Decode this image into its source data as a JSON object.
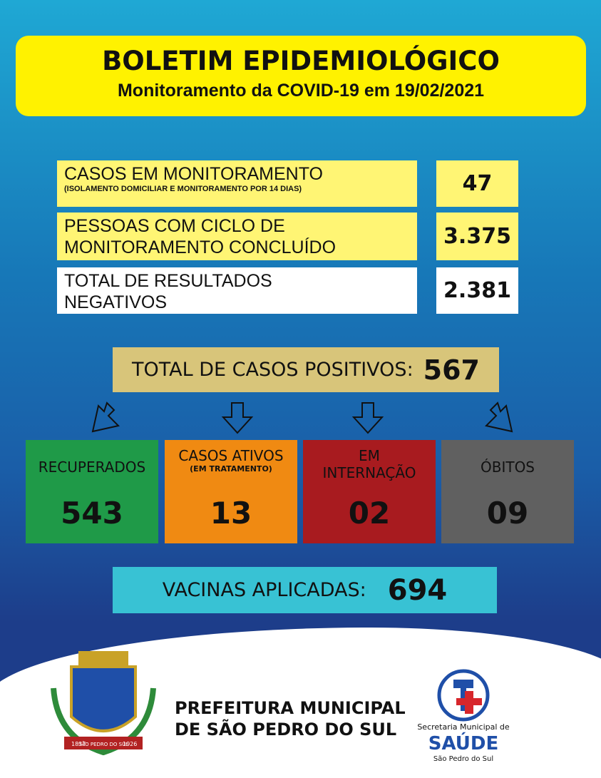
{
  "header": {
    "title": "BOLETIM EPIDEMIOLÓGICO",
    "subtitle": "Monitoramento da COVID-19 em 19/02/2021"
  },
  "monitoring": [
    {
      "label": [
        "CASOS EM MONITORAMENTO"
      ],
      "note": "(ISOLAMENTO DOMICILIAR E MONITORAMENTO POR 14 DIAS)",
      "value": "47"
    },
    {
      "label": [
        "PESSOAS COM CICLO DE",
        "MONITORAMENTO CONCLUÍDO"
      ],
      "value": "3.375"
    },
    {
      "label": [
        "TOTAL DE RESULTADOS",
        "NEGATIVOS"
      ],
      "value": "2.381"
    }
  ],
  "positives": {
    "label": "TOTAL DE CASOS POSITIVOS:",
    "value": "567"
  },
  "outcomes": [
    {
      "label": [
        "RECUPERADOS"
      ],
      "value": "543"
    },
    {
      "label": [
        "CASOS ATIVOS"
      ],
      "note": "(EM TRATAMENTO)",
      "value": "13"
    },
    {
      "label": [
        "EM",
        "INTERNAÇÃO"
      ],
      "value": "02"
    },
    {
      "label": [
        "ÓBITOS"
      ],
      "value": "09"
    }
  ],
  "vaccines": {
    "label": "VACINAS APLICADAS:",
    "value": "694"
  },
  "footer": {
    "city": [
      "PREFEITURA MUNICIPAL",
      "DE SÃO PEDRO DO SUL"
    ],
    "crest": [
      "1837",
      "SÃO PEDRO DO SUL",
      "1926"
    ],
    "health": [
      "Secretaria Municipal de",
      "SAÚDE",
      "São Pedro do Sul"
    ]
  }
}
